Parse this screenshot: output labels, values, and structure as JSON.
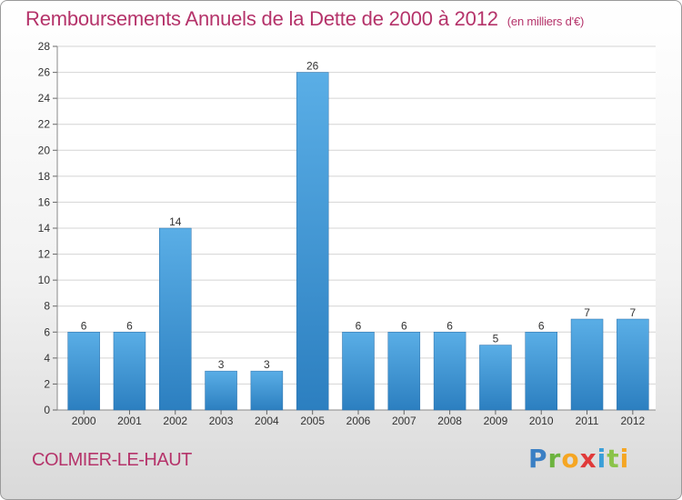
{
  "title": "Remboursements Annuels de la Dette de 2000 à 2012",
  "subtitle": "(en milliers d'€)",
  "commune": "COLMIER-LE-HAUT",
  "logo": {
    "letters": [
      {
        "ch": "P",
        "color": "#3a7fc4"
      },
      {
        "ch": "r",
        "color": "#6cb33f"
      },
      {
        "ch": "o",
        "color": "#f5a623"
      },
      {
        "ch": "x",
        "color": "#e03a3a"
      },
      {
        "ch": "i",
        "color": "#3a9fd8"
      },
      {
        "ch": "t",
        "color": "#8bc34a"
      },
      {
        "ch": "i",
        "color": "#f5a623"
      }
    ]
  },
  "colors": {
    "bar_light": "#5aaee6",
    "bar_dark": "#2c7fc0",
    "title": "#b5336a"
  },
  "chart_data": {
    "type": "bar",
    "categories": [
      "2000",
      "2001",
      "2002",
      "2003",
      "2004",
      "2005",
      "2006",
      "2007",
      "2008",
      "2009",
      "2010",
      "2011",
      "2012"
    ],
    "values": [
      6,
      6,
      14,
      3,
      3,
      26,
      6,
      6,
      6,
      5,
      6,
      7,
      7
    ],
    "ylim": [
      0,
      28
    ],
    "yticks": [
      0,
      2,
      4,
      6,
      8,
      10,
      12,
      14,
      16,
      18,
      20,
      22,
      24,
      26,
      28
    ],
    "grid": true,
    "data_labels": true
  }
}
